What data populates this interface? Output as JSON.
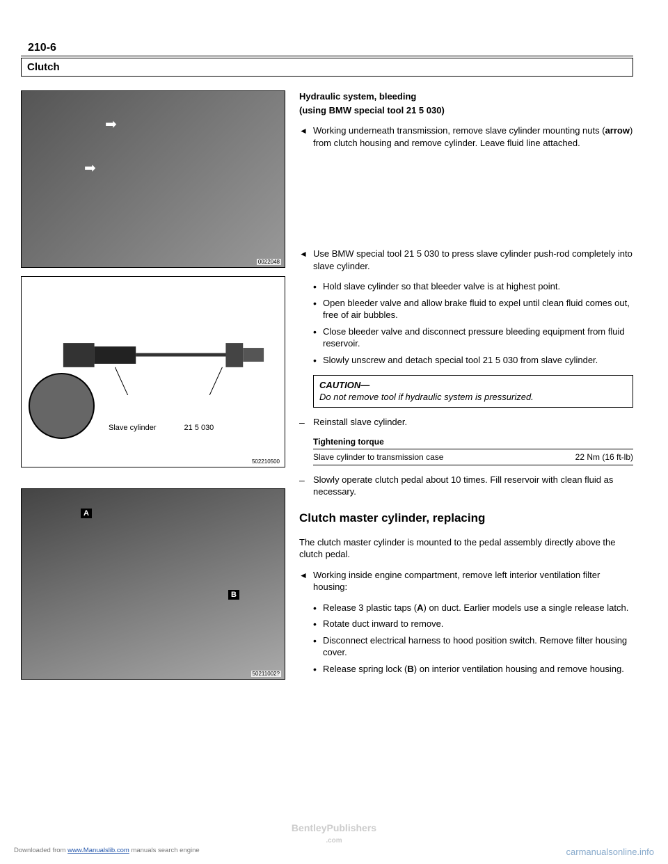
{
  "page_number": "210-6",
  "section_title": "Clutch",
  "heading1": "Hydraulic system, bleeding",
  "heading1_sub": "(using BMW special tool 21 5 030)",
  "para1": "Working underneath transmission, remove slave cylinder mounting nuts (<b>arrow</b>) from clutch housing and remove cylinder. Leave fluid line attached.",
  "para2_intro": "Use BMW special tool 21 5 030 to press slave cylinder push-rod completely into slave cylinder.",
  "bullets1": [
    "Hold slave cylinder so that bleeder valve is at highest point.",
    "Open bleeder valve and allow brake fluid to expel until clean fluid comes out, free of air bubbles.",
    "Close bleeder valve and disconnect pressure bleeding equipment from fluid reservoir.",
    "Slowly unscrew and detach special tool 21 5 030 from slave cylinder."
  ],
  "caution_title": "CAUTION—",
  "caution_text": "Do not remove tool if hydraulic system is pressurized.",
  "para3": "Reinstall slave cylinder.",
  "torque_heading": "Tightening torque",
  "torque_label": "Slave cylinder to transmission case",
  "torque_value": "22 Nm (16 ft-lb)",
  "para4": "Slowly operate clutch pedal about 10 times. Fill reservoir with clean fluid as necessary.",
  "heading2": "Clutch master cylinder, replacing",
  "para5": "The clutch master cylinder is mounted to the pedal assembly directly above the clutch pedal.",
  "para6_intro": "Working inside engine compartment, remove left interior ventilation filter housing:",
  "bullets2": [
    "Release 3 plastic taps (<b>A</b>) on duct. Earlier models use a single release latch.",
    "Rotate duct inward to remove.",
    "Disconnect electrical harness to hood position switch. Remove filter housing cover.",
    "Release spring lock (<b>B</b>) on interior ventilation housing and remove housing."
  ],
  "img1_code": "0022048",
  "img2_code": "502210500",
  "img2_label1": "Slave cylinder",
  "img2_label2": "21 5 030",
  "img3_code": "50211002?",
  "img3_label_a": "A",
  "img3_label_b": "B",
  "footer_left_pre": "Downloaded from ",
  "footer_left_link": "www.Manualslib.com",
  "footer_left_post": " manuals search engine",
  "footer_right": "carmanualsonline.info",
  "watermark1": "BentleyPublishers",
  "watermark2": ".com"
}
